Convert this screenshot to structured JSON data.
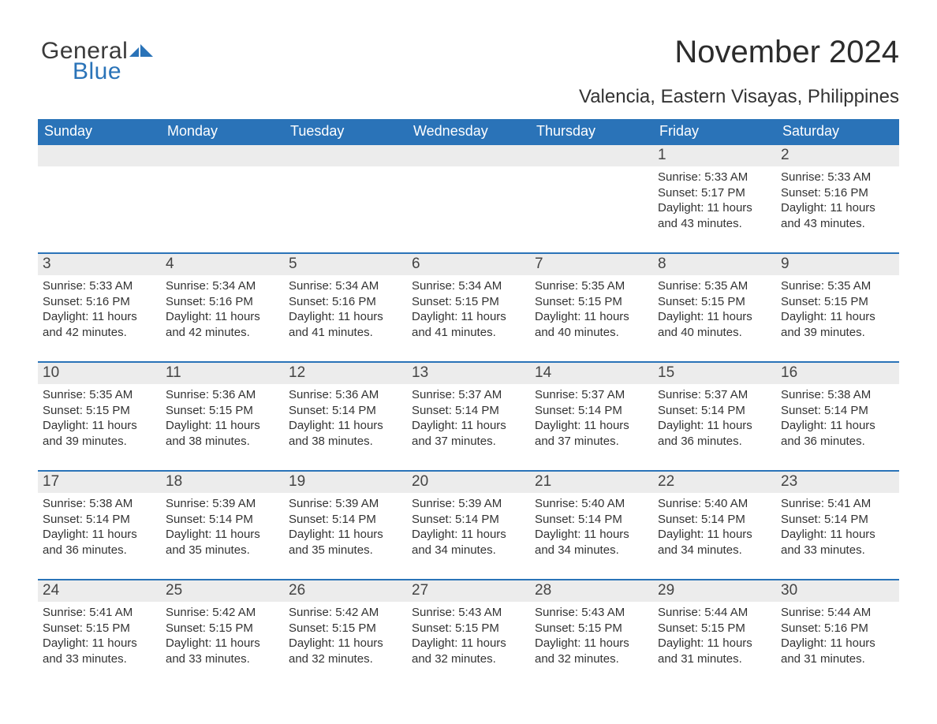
{
  "logo": {
    "text1": "General",
    "text2": "Blue"
  },
  "title": "November 2024",
  "location": "Valencia, Eastern Visayas, Philippines",
  "colors": {
    "header_bg": "#2a73b8",
    "day_bg": "#ececec"
  },
  "days_of_week": [
    "Sunday",
    "Monday",
    "Tuesday",
    "Wednesday",
    "Thursday",
    "Friday",
    "Saturday"
  ],
  "weeks": [
    [
      null,
      null,
      null,
      null,
      null,
      {
        "n": "1",
        "sunrise": "5:33 AM",
        "sunset": "5:17 PM",
        "dayh": "11",
        "daym": "43"
      },
      {
        "n": "2",
        "sunrise": "5:33 AM",
        "sunset": "5:16 PM",
        "dayh": "11",
        "daym": "43"
      }
    ],
    [
      {
        "n": "3",
        "sunrise": "5:33 AM",
        "sunset": "5:16 PM",
        "dayh": "11",
        "daym": "42"
      },
      {
        "n": "4",
        "sunrise": "5:34 AM",
        "sunset": "5:16 PM",
        "dayh": "11",
        "daym": "42"
      },
      {
        "n": "5",
        "sunrise": "5:34 AM",
        "sunset": "5:16 PM",
        "dayh": "11",
        "daym": "41"
      },
      {
        "n": "6",
        "sunrise": "5:34 AM",
        "sunset": "5:15 PM",
        "dayh": "11",
        "daym": "41"
      },
      {
        "n": "7",
        "sunrise": "5:35 AM",
        "sunset": "5:15 PM",
        "dayh": "11",
        "daym": "40"
      },
      {
        "n": "8",
        "sunrise": "5:35 AM",
        "sunset": "5:15 PM",
        "dayh": "11",
        "daym": "40"
      },
      {
        "n": "9",
        "sunrise": "5:35 AM",
        "sunset": "5:15 PM",
        "dayh": "11",
        "daym": "39"
      }
    ],
    [
      {
        "n": "10",
        "sunrise": "5:35 AM",
        "sunset": "5:15 PM",
        "dayh": "11",
        "daym": "39"
      },
      {
        "n": "11",
        "sunrise": "5:36 AM",
        "sunset": "5:15 PM",
        "dayh": "11",
        "daym": "38"
      },
      {
        "n": "12",
        "sunrise": "5:36 AM",
        "sunset": "5:14 PM",
        "dayh": "11",
        "daym": "38"
      },
      {
        "n": "13",
        "sunrise": "5:37 AM",
        "sunset": "5:14 PM",
        "dayh": "11",
        "daym": "37"
      },
      {
        "n": "14",
        "sunrise": "5:37 AM",
        "sunset": "5:14 PM",
        "dayh": "11",
        "daym": "37"
      },
      {
        "n": "15",
        "sunrise": "5:37 AM",
        "sunset": "5:14 PM",
        "dayh": "11",
        "daym": "36"
      },
      {
        "n": "16",
        "sunrise": "5:38 AM",
        "sunset": "5:14 PM",
        "dayh": "11",
        "daym": "36"
      }
    ],
    [
      {
        "n": "17",
        "sunrise": "5:38 AM",
        "sunset": "5:14 PM",
        "dayh": "11",
        "daym": "36"
      },
      {
        "n": "18",
        "sunrise": "5:39 AM",
        "sunset": "5:14 PM",
        "dayh": "11",
        "daym": "35"
      },
      {
        "n": "19",
        "sunrise": "5:39 AM",
        "sunset": "5:14 PM",
        "dayh": "11",
        "daym": "35"
      },
      {
        "n": "20",
        "sunrise": "5:39 AM",
        "sunset": "5:14 PM",
        "dayh": "11",
        "daym": "34"
      },
      {
        "n": "21",
        "sunrise": "5:40 AM",
        "sunset": "5:14 PM",
        "dayh": "11",
        "daym": "34"
      },
      {
        "n": "22",
        "sunrise": "5:40 AM",
        "sunset": "5:14 PM",
        "dayh": "11",
        "daym": "34"
      },
      {
        "n": "23",
        "sunrise": "5:41 AM",
        "sunset": "5:14 PM",
        "dayh": "11",
        "daym": "33"
      }
    ],
    [
      {
        "n": "24",
        "sunrise": "5:41 AM",
        "sunset": "5:15 PM",
        "dayh": "11",
        "daym": "33"
      },
      {
        "n": "25",
        "sunrise": "5:42 AM",
        "sunset": "5:15 PM",
        "dayh": "11",
        "daym": "33"
      },
      {
        "n": "26",
        "sunrise": "5:42 AM",
        "sunset": "5:15 PM",
        "dayh": "11",
        "daym": "32"
      },
      {
        "n": "27",
        "sunrise": "5:43 AM",
        "sunset": "5:15 PM",
        "dayh": "11",
        "daym": "32"
      },
      {
        "n": "28",
        "sunrise": "5:43 AM",
        "sunset": "5:15 PM",
        "dayh": "11",
        "daym": "32"
      },
      {
        "n": "29",
        "sunrise": "5:44 AM",
        "sunset": "5:15 PM",
        "dayh": "11",
        "daym": "31"
      },
      {
        "n": "30",
        "sunrise": "5:44 AM",
        "sunset": "5:16 PM",
        "dayh": "11",
        "daym": "31"
      }
    ]
  ],
  "labels": {
    "sunrise": "Sunrise: ",
    "sunset": "Sunset: ",
    "daylight1": "Daylight: ",
    "hours": " hours",
    "and": "and ",
    "minutes": " minutes."
  }
}
